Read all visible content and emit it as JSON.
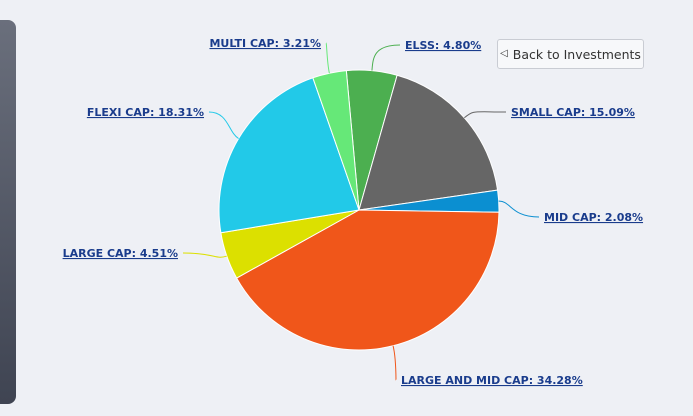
{
  "back_button": {
    "icon": "back-triangle-icon",
    "glyph": "◁",
    "label": "Back to Investments"
  },
  "chart_data": {
    "type": "pie",
    "title": "",
    "slices": [
      {
        "label": "ELSS",
        "value": 4.8,
        "display": "ELSS: 4.80%",
        "color": "#4caf50"
      },
      {
        "label": "SMALL CAP",
        "value": 15.09,
        "display": "SMALL CAP: 15.09%",
        "color": "#666666"
      },
      {
        "label": "MID CAP",
        "value": 2.08,
        "display": "MID CAP: 2.08%",
        "color": "#0b8fd1"
      },
      {
        "label": "LARGE AND MID CAP",
        "value": 34.28,
        "display": "LARGE AND MID CAP: 34.28%",
        "color": "#f0561a"
      },
      {
        "label": "LARGE CAP",
        "value": 4.51,
        "display": "LARGE CAP: 4.51%",
        "color": "#dce000"
      },
      {
        "label": "FLEXI CAP",
        "value": 18.31,
        "display": "FLEXI CAP: 18.31%",
        "color": "#22c9e8"
      },
      {
        "label": "MULTI CAP",
        "value": 3.21,
        "display": "MULTI CAP: 3.21%",
        "color": "#66e878"
      }
    ]
  }
}
